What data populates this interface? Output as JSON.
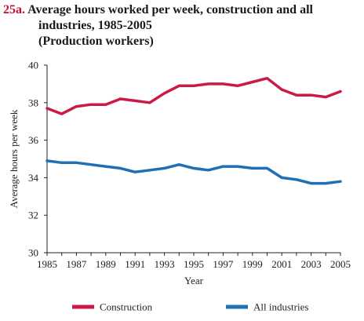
{
  "title": {
    "number": "25a.",
    "line1": "Average hours worked per week, construction and all",
    "line2": "industries, 1985-2005",
    "line3": "(Production workers)"
  },
  "chart_data": {
    "type": "line",
    "title": "Average hours worked per week, construction and all industries, 1985-2005",
    "subtitle": "(Production workers)",
    "xlabel": "Year",
    "ylabel": "Average hours per week",
    "xlim": [
      1985,
      2005
    ],
    "ylim": [
      30,
      40
    ],
    "x_ticks": [
      1985,
      1987,
      1989,
      1991,
      1993,
      1995,
      1997,
      1999,
      2001,
      2003,
      2005
    ],
    "y_ticks": [
      30,
      32,
      34,
      36,
      38,
      40
    ],
    "grid": false,
    "legend_position": "bottom",
    "x": [
      1985,
      1986,
      1987,
      1988,
      1989,
      1990,
      1991,
      1992,
      1993,
      1994,
      1995,
      1996,
      1997,
      1998,
      1999,
      2000,
      2001,
      2002,
      2003,
      2004,
      2005
    ],
    "series": [
      {
        "name": "Construction",
        "color": "#cc1a48",
        "values": [
          37.7,
          37.4,
          37.8,
          37.9,
          37.9,
          38.2,
          38.1,
          38.0,
          38.5,
          38.9,
          38.9,
          39.0,
          39.0,
          38.9,
          39.1,
          39.3,
          38.7,
          38.4,
          38.4,
          38.3,
          38.6
        ]
      },
      {
        "name": "All industries",
        "color": "#1f6fb5",
        "values": [
          34.9,
          34.8,
          34.8,
          34.7,
          34.6,
          34.5,
          34.3,
          34.4,
          34.5,
          34.7,
          34.5,
          34.4,
          34.6,
          34.6,
          34.5,
          34.5,
          34.0,
          33.9,
          33.7,
          33.7,
          33.8
        ]
      }
    ]
  }
}
